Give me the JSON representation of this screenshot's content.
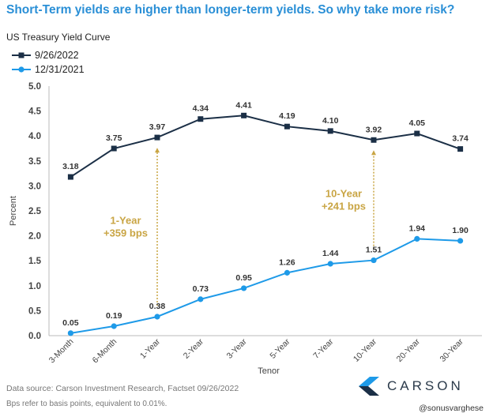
{
  "headline": "Short-Term yields are higher than longer-term yields. So why take more risk?",
  "subtitle": "US Treasury Yield Curve",
  "chart_data": {
    "type": "line",
    "categories": [
      "3-Month",
      "6-Month",
      "1-Year",
      "2-Year",
      "3-Year",
      "5-Year",
      "7-Year",
      "10-Year",
      "20-Year",
      "30-Year"
    ],
    "series": [
      {
        "name": "9/26/2022",
        "color": "#1b2f46",
        "marker": "square",
        "values": [
          3.18,
          3.75,
          3.97,
          4.34,
          4.41,
          4.19,
          4.1,
          3.92,
          4.05,
          3.74
        ],
        "labels": [
          "3.18",
          "3.75",
          "3.97",
          "4.34",
          "4.41",
          "4.19",
          "4.10",
          "3.92",
          "4.05",
          "3.74"
        ]
      },
      {
        "name": "12/31/2021",
        "color": "#1e9ae8",
        "marker": "circle",
        "values": [
          0.05,
          0.19,
          0.38,
          0.73,
          0.95,
          1.26,
          1.44,
          1.51,
          1.94,
          1.9
        ],
        "labels": [
          "0.05",
          "0.19",
          "0.38",
          "0.73",
          "0.95",
          "1.26",
          "1.44",
          "1.51",
          "1.94",
          "1.90"
        ]
      }
    ],
    "xlabel": "Tenor",
    "ylabel": "Percent",
    "ylim": [
      0,
      5
    ],
    "yticks": [
      "0.0",
      "0.5",
      "1.0",
      "1.5",
      "2.0",
      "2.5",
      "3.0",
      "3.5",
      "4.0",
      "4.5",
      "5.0"
    ],
    "grid": false,
    "legend": "top-left",
    "annotations": [
      {
        "category": "1-Year",
        "from": 0.38,
        "to": 3.97,
        "lines": [
          "1-Year",
          "+359 bps"
        ],
        "color": "#c9a544"
      },
      {
        "category": "10-Year",
        "from": 1.51,
        "to": 3.92,
        "lines": [
          "10-Year",
          "+241 bps"
        ],
        "color": "#c9a544"
      }
    ]
  },
  "source": "Data source: Carson Investment Research, Factset  09/26/2022",
  "footnote": "Bps refer to basis points, equivalent to 0.01%.",
  "logo_text": "CARSON",
  "handle": "@sonusvarghese",
  "colors": {
    "headline": "#2a8fd6",
    "series_dark": "#1b2f46",
    "series_light": "#1e9ae8",
    "annotation": "#c9a544"
  }
}
